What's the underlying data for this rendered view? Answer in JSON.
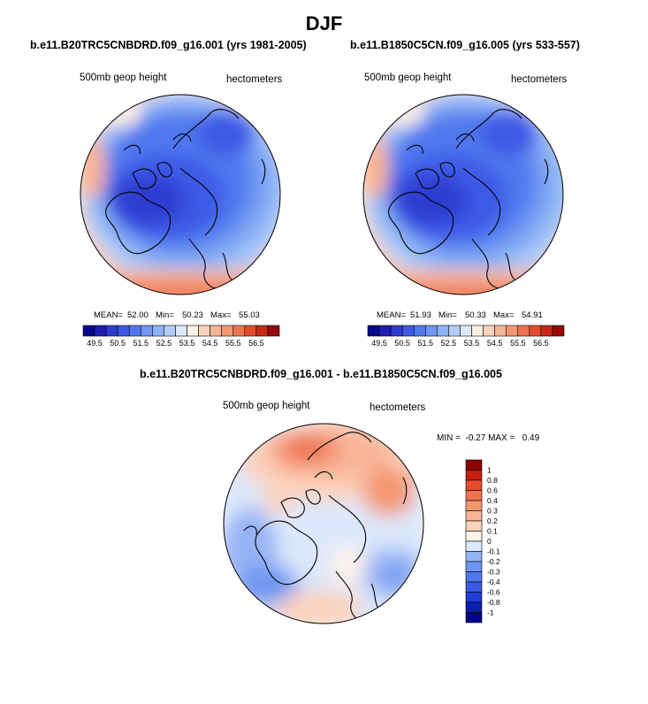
{
  "main_title": "DJF",
  "palette": [
    "#08088c",
    "#1e1eb4",
    "#2d3cd2",
    "#3c5ae6",
    "#5078ee",
    "#6e96f2",
    "#8cb4f5",
    "#b4cdf8",
    "#dce8fb",
    "#fdf0e6",
    "#fcd2bc",
    "#f8b496",
    "#f49670",
    "#ee7350",
    "#e64b2d",
    "#c82814",
    "#960a05"
  ],
  "diff_palette": [
    "#00008c",
    "#0a1eb4",
    "#1e3cd7",
    "#3c5ae6",
    "#5078ee",
    "#6e96f2",
    "#96b4f5",
    "#dce8fb",
    "#fef3ea",
    "#fcd2bc",
    "#f8b496",
    "#f49670",
    "#ee7350",
    "#e64b2d",
    "#c81e0a",
    "#8c0000"
  ],
  "chart_data": [
    {
      "type": "heatmap",
      "title": "b.e11.B20TRC5CNBDRD.f09_g16.001 (yrs 1981-2005)",
      "left_label": "500mb geop height",
      "right_label": "hectometers",
      "stats": {
        "mean_label": "MEAN=",
        "mean": "52.00",
        "min_label": "Min=",
        "min": "50.23",
        "max_label": "Max=",
        "max": "55.03"
      },
      "colorbar_ticks": [
        "49.5",
        "50.5",
        "51.5",
        "52.5",
        "53.5",
        "54.5",
        "55.5",
        "56.5"
      ]
    },
    {
      "type": "heatmap",
      "title": "b.e11.B1850C5CN.f09_g16.005 (yrs 533-557)",
      "left_label": "500mb geop height",
      "right_label": "hectometers",
      "stats": {
        "mean_label": "MEAN=",
        "mean": "51.93",
        "min_label": "Min=",
        "min": "50.33",
        "max_label": "Max=",
        "max": "54.91"
      },
      "colorbar_ticks": [
        "49.5",
        "50.5",
        "51.5",
        "52.5",
        "53.5",
        "54.5",
        "55.5",
        "56.5"
      ]
    },
    {
      "type": "heatmap",
      "title": "b.e11.B20TRC5CNBDRD.f09_g16.001 - b.e11.B1850C5CN.f09_g16.005",
      "left_label": "500mb geop height",
      "right_label": "hectometers",
      "stats_text": "MIN =  -0.27 MAX =   0.49",
      "colorbar_ticks": [
        "1",
        "0.8",
        "0.6",
        "0.4",
        "0.3",
        "0.2",
        "0.1",
        "0",
        "-0.1",
        "-0.2",
        "-0.3",
        "-0.4",
        "-0.6",
        "-0.8",
        "-1"
      ]
    }
  ]
}
